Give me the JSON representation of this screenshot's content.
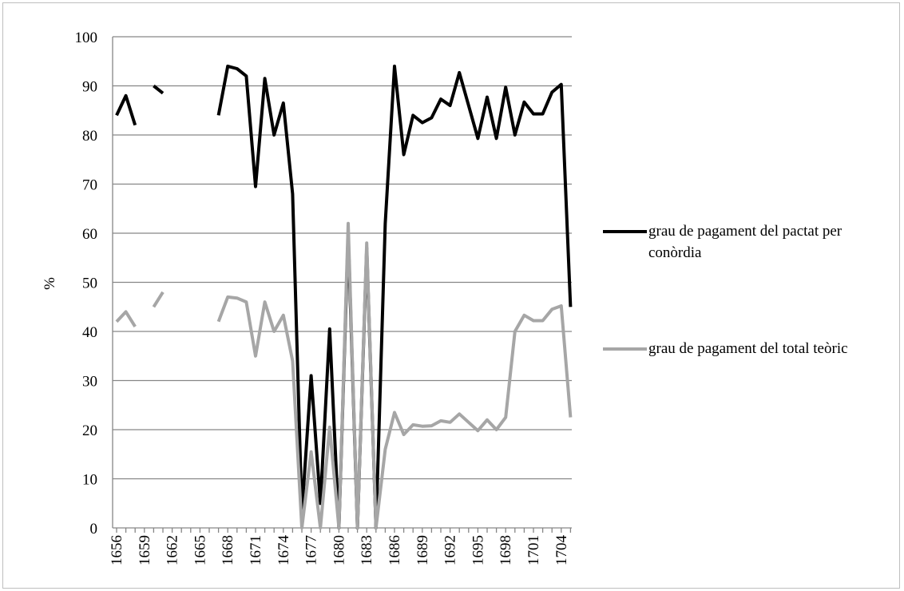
{
  "chart_data": {
    "type": "line",
    "y_label": "%",
    "categories": [
      "1656",
      null,
      null,
      "1659",
      null,
      null,
      "1662",
      null,
      null,
      "1665",
      null,
      null,
      "1668",
      null,
      null,
      "1671",
      null,
      null,
      "1674",
      null,
      null,
      "1677",
      null,
      null,
      "1680",
      null,
      null,
      "1683",
      null,
      null,
      "1686",
      null,
      null,
      "1689",
      null,
      null,
      "1692",
      null,
      null,
      "1695",
      null,
      null,
      "1698",
      null,
      null,
      "1701",
      null,
      null,
      "1704",
      null
    ],
    "series": [
      {
        "name": "grau de pagament del pactat per conòrdia",
        "color": "#000000",
        "values": [
          84,
          88,
          82,
          null,
          90,
          88.5,
          null,
          null,
          null,
          null,
          null,
          84,
          94,
          93.5,
          92,
          69.5,
          91.5,
          80,
          86.5,
          68,
          3,
          31,
          5,
          40.5,
          0,
          60,
          0,
          57,
          0,
          62,
          94,
          76,
          84,
          82.5,
          83.5,
          87.3,
          86,
          92.7,
          86,
          79.3,
          87.7,
          79.3,
          89.7,
          80,
          86.7,
          84.3,
          84.3,
          88.7,
          90.3,
          45
        ]
      },
      {
        "name": "grau de pagament del total teòric",
        "color": "#a6a6a6",
        "values": [
          42,
          44,
          41,
          null,
          45,
          48,
          null,
          null,
          null,
          null,
          null,
          42,
          47,
          46.8,
          46,
          35,
          46,
          40,
          43.3,
          34,
          0,
          15.5,
          0,
          20.5,
          0,
          62,
          0,
          58,
          0,
          16,
          23.5,
          19,
          21,
          20.7,
          20.8,
          21.8,
          21.5,
          23.2,
          21.5,
          19.8,
          22,
          20,
          22.5,
          40,
          43.3,
          42.2,
          42.2,
          44.5,
          45.2,
          22.5
        ]
      }
    ],
    "ylim": [
      0,
      100
    ],
    "yticks": [
      0,
      10,
      20,
      30,
      40,
      50,
      60,
      70,
      80,
      90,
      100
    ],
    "grid": true,
    "legend": "right"
  }
}
